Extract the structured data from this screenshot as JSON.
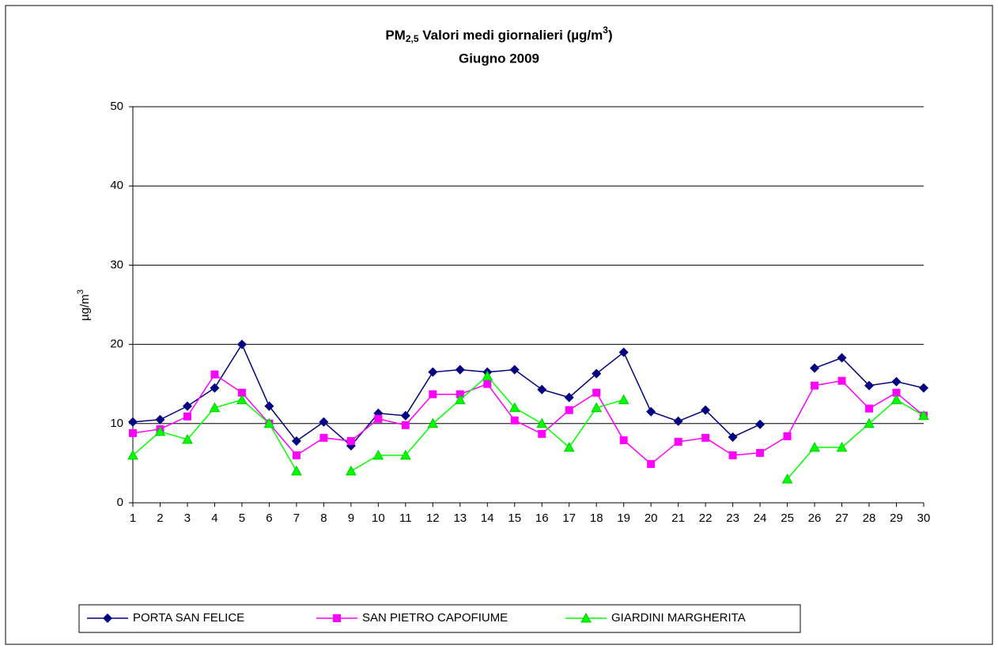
{
  "chart_data": {
    "type": "line",
    "title": [
      "PM",
      "2,5",
      " Valori medi giornalieri (µg/m",
      "3",
      ")"
    ],
    "subtitle": "Giugno 2009",
    "y_label": [
      "µg/m",
      "3"
    ],
    "categories": [
      "1",
      "2",
      "3",
      "4",
      "5",
      "6",
      "7",
      "8",
      "9",
      "10",
      "11",
      "12",
      "13",
      "14",
      "15",
      "16",
      "17",
      "18",
      "19",
      "20",
      "21",
      "22",
      "23",
      "24",
      "25",
      "26",
      "27",
      "28",
      "29",
      "30"
    ],
    "series": [
      {
        "name": "PORTA SAN FELICE",
        "color": "#000080",
        "marker": "diamond",
        "values": [
          10.2,
          10.5,
          12.2,
          14.5,
          20,
          12.2,
          7.8,
          10.2,
          7.2,
          11.3,
          11,
          16.5,
          16.8,
          16.5,
          16.8,
          14.3,
          13.3,
          16.3,
          19,
          11.5,
          10.3,
          11.7,
          8.3,
          9.9,
          null,
          17,
          18.3,
          14.8,
          15.3,
          14.5
        ]
      },
      {
        "name": "SAN PIETRO CAPOFIUME",
        "color": "#ff00ff",
        "marker": "square",
        "values": [
          8.8,
          9.3,
          10.9,
          16.2,
          13.9,
          10,
          6,
          8.2,
          7.8,
          10.6,
          9.8,
          13.7,
          13.7,
          15,
          10.4,
          8.7,
          11.7,
          13.9,
          7.9,
          4.9,
          7.7,
          8.2,
          6,
          6.3,
          8.4,
          14.8,
          15.4,
          11.9,
          13.9,
          11
        ]
      },
      {
        "name": "GIARDINI MARGHERITA",
        "color": "#00ff00",
        "marker": "triangle",
        "values": [
          6,
          9,
          8,
          12,
          13,
          10,
          4,
          null,
          4,
          6,
          6,
          10,
          13,
          16,
          12,
          10,
          7,
          12,
          13,
          null,
          null,
          null,
          null,
          null,
          3,
          7,
          7,
          10,
          13,
          11
        ]
      }
    ],
    "ylim": [
      0,
      50
    ],
    "yticks": [
      0,
      10,
      20,
      30,
      40,
      50
    ],
    "grid": true,
    "legend": "bottom"
  }
}
